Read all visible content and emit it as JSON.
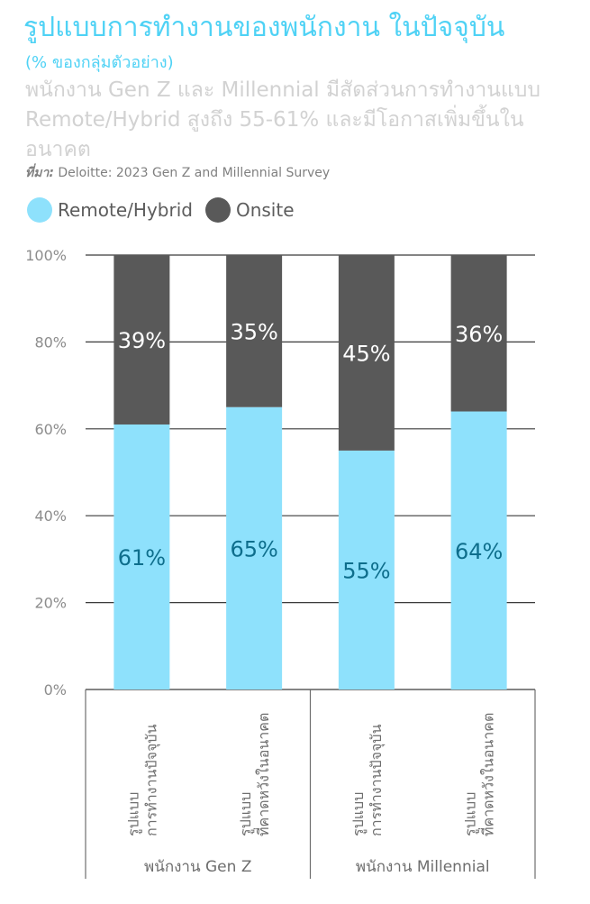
{
  "title": "รูปแบบการทำงานของพนักงาน ในปัจจุบัน",
  "unit_note": "(% ของกลุ่มตัวอย่าง)",
  "subtitle": "พนักงาน Gen Z และ Millennial มีสัดส่วนการทำงานแบบ Remote/Hybrid สูงถึง 55-61% และมีโอกาสเพิ่มขึ้นในอนาคต",
  "source": {
    "label": "ที่มา:",
    "text": "Deloitte: 2023 Gen Z and Millennial Survey"
  },
  "legend": [
    {
      "label": "Remote/Hybrid",
      "color": "#8ee1fc"
    },
    {
      "label": "Onsite",
      "color": "#595959"
    }
  ],
  "chart_data": {
    "type": "bar",
    "stacked": true,
    "ylim": [
      0,
      100
    ],
    "yticks": [
      "0%",
      "20%",
      "40%",
      "60%",
      "80%",
      "100%"
    ],
    "grid": true,
    "legend_position": "top-left",
    "categories": [
      [
        "รูปแบบ",
        "การทำงานปัจจุบัน"
      ],
      [
        "รูปแบบ",
        "ที่คาดหวังในอนาคต"
      ],
      [
        "รูปแบบ",
        "การทำงานปัจจุบัน"
      ],
      [
        "รูปแบบ",
        "ที่คาดหวังในอนาคต"
      ]
    ],
    "groups": [
      {
        "label": "พนักงาน Gen Z",
        "span": 2
      },
      {
        "label": "พนักงาน Millennial",
        "span": 2
      }
    ],
    "series": [
      {
        "name": "Remote/Hybrid",
        "values": [
          61,
          65,
          55,
          64
        ],
        "labels": [
          "61%",
          "65%",
          "55%",
          "64%"
        ],
        "color": "#8ee1fc",
        "label_color": "#0e6e8c"
      },
      {
        "name": "Onsite",
        "values": [
          39,
          35,
          45,
          36
        ],
        "labels": [
          "39%",
          "35%",
          "45%",
          "36%"
        ],
        "color": "#595959",
        "label_color": "#ffffff"
      }
    ]
  }
}
